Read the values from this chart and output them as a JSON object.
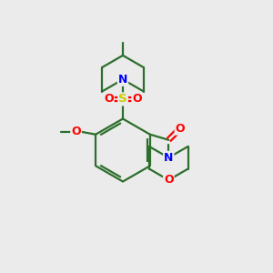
{
  "bg_color": "#ebebeb",
  "bond_color": "#2d6e2d",
  "N_color": "#0000ff",
  "O_color": "#ff0000",
  "S_color": "#cccc00",
  "line_width": 1.6,
  "figsize": [
    3.0,
    3.0
  ],
  "dpi": 100,
  "xlim": [
    0,
    10
  ],
  "ylim": [
    0,
    10
  ]
}
